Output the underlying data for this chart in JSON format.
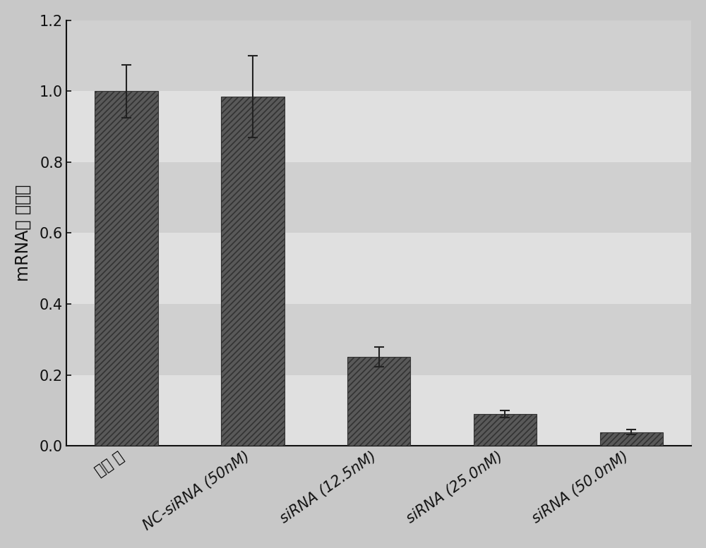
{
  "categories": [
    "未转 染",
    "NC-siRNA (50nM)",
    "siRNA (12.5nM)",
    "siRNA (25.0nM)",
    "siRNA (50.0nM)"
  ],
  "values": [
    1.0,
    0.985,
    0.25,
    0.09,
    0.038
  ],
  "errors": [
    0.075,
    0.115,
    0.028,
    0.01,
    0.007
  ],
  "bar_color": "#595959",
  "hatch_pattern": "////",
  "hatch_color": "#888888",
  "ylabel": "mRNA表 达水平",
  "ylim": [
    0.0,
    1.2
  ],
  "yticks": [
    0.0,
    0.2,
    0.4,
    0.6,
    0.8,
    1.0,
    1.2
  ],
  "background_color": "#c8c8c8",
  "plot_bg_color": "#e8e8e8",
  "bar_width": 0.5,
  "ylabel_fontsize": 17,
  "tick_fontsize": 15,
  "xlabel_rotation": 35,
  "stripe_colors": [
    "#e0e0e0",
    "#d0d0d0"
  ],
  "error_capsize": 5,
  "error_linewidth": 1.5,
  "error_color": "#222222",
  "spine_color": "#111111",
  "tick_label_color": "#111111",
  "bar_edge_color": "#333333"
}
